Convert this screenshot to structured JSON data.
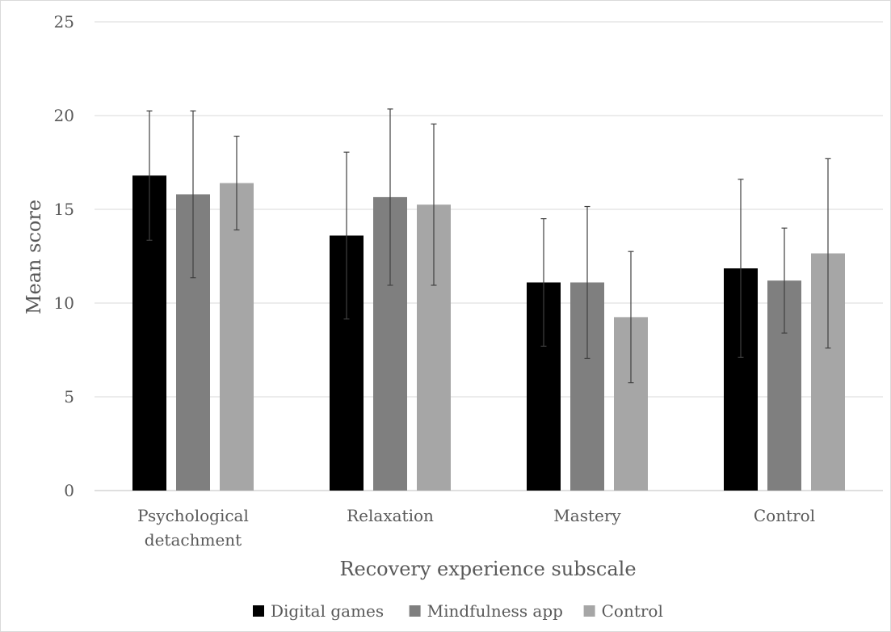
{
  "chart_data": {
    "type": "bar",
    "title": "",
    "xlabel": "Recovery experience subscale",
    "ylabel": "Mean score",
    "ylim": [
      0,
      25
    ],
    "yticks": [
      "0",
      "5",
      "10",
      "15",
      "20",
      "25"
    ],
    "grid": true,
    "legend_position": "bottom",
    "categories": [
      [
        "Psychological",
        "detachment"
      ],
      [
        "Relaxation"
      ],
      [
        "Mastery"
      ],
      [
        "Control"
      ]
    ],
    "series": [
      {
        "name": "Digital games",
        "color": "#000000",
        "values": [
          16.8,
          13.6,
          11.1,
          11.85
        ],
        "error": [
          3.45,
          4.45,
          3.4,
          4.75
        ]
      },
      {
        "name": "Mindfulness app",
        "color": "#7f7f7f",
        "values": [
          15.8,
          15.65,
          11.1,
          11.2
        ],
        "error": [
          4.45,
          4.7,
          4.05,
          2.8
        ]
      },
      {
        "name": "Control",
        "color": "#a6a6a6",
        "values": [
          16.4,
          15.25,
          9.25,
          12.65
        ],
        "error": [
          2.5,
          4.3,
          3.5,
          5.05
        ]
      }
    ]
  }
}
